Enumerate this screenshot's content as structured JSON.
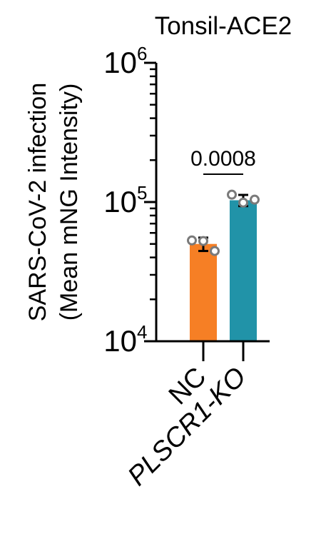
{
  "chart_data": {
    "type": "bar",
    "title": "Tonsil-ACE2",
    "ylabel_line1": "SARS-CoV-2 infection",
    "ylabel_line2": "(Mean mNG Intensity)",
    "xlabel": "",
    "yscale": "log",
    "ylim": [
      10000,
      1000000
    ],
    "yticks": [
      {
        "value": 10000,
        "base": "10",
        "exp": "4"
      },
      {
        "value": 100000,
        "base": "10",
        "exp": "5"
      },
      {
        "value": 1000000,
        "base": "10",
        "exp": "6"
      }
    ],
    "categories": [
      "NC",
      "PLSCR1-KO"
    ],
    "category_italic": [
      false,
      true
    ],
    "values": [
      50000,
      103000
    ],
    "errors": [
      5500,
      9500
    ],
    "points": [
      [
        53000,
        52500,
        44500
      ],
      [
        113000,
        99000,
        104000
      ]
    ],
    "colors": [
      "#F67F25",
      "#2193A8"
    ],
    "point_color": "#7a7a7a",
    "significance": {
      "pair": [
        0,
        1
      ],
      "label": "0.0008"
    },
    "legend": "none",
    "grid": false
  }
}
